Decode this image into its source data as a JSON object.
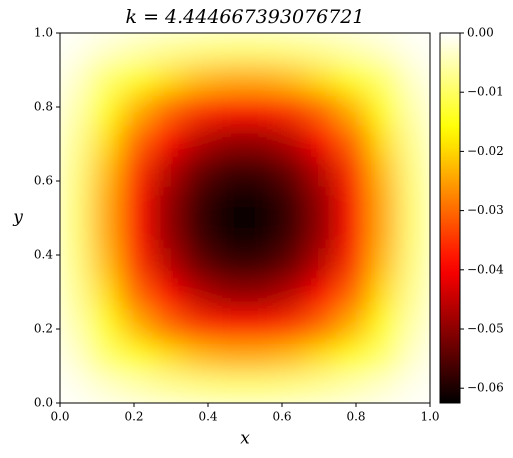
{
  "chart_data": {
    "type": "heatmap",
    "title": "k = 4.444667393076721",
    "x_label": "x",
    "y_label": "y",
    "xlim": [
      0,
      1
    ],
    "ylim": [
      0,
      1
    ],
    "xticks": [
      {
        "value": 0,
        "label": "0.0"
      },
      0.2,
      0.4,
      0.6,
      0.8,
      {
        "value": 1,
        "label": "1.0"
      }
    ],
    "yticks": [
      {
        "value": 0,
        "label": "0.0"
      },
      0.2,
      0.4,
      0.6,
      0.8,
      {
        "value": 1,
        "label": "1.0"
      }
    ],
    "colormap": "hot",
    "zlim": [
      -0.0625,
      0
    ],
    "colorbar_ticks": [
      {
        "value": 0,
        "label": "0.00"
      },
      {
        "value": -0.01,
        "label": "−0.01"
      },
      {
        "value": -0.02,
        "label": "−0.02"
      },
      {
        "value": -0.03,
        "label": "−0.03"
      },
      {
        "value": -0.04,
        "label": "−0.04"
      },
      {
        "value": -0.05,
        "label": "−0.05"
      },
      {
        "value": -0.06,
        "label": "−0.06"
      }
    ],
    "z": [
      [
        -0.0011,
        -0.0031,
        -0.005,
        -0.0065,
        -0.0075,
        -0.0081,
        -0.0081,
        -0.0075,
        -0.0065,
        -0.005,
        -0.0031,
        -0.0011
      ],
      [
        -0.0031,
        -0.0092,
        -0.0146,
        -0.019,
        -0.0221,
        -0.0237,
        -0.0237,
        -0.0221,
        -0.019,
        -0.0146,
        -0.0092,
        -0.0031
      ],
      [
        -0.005,
        -0.0146,
        -0.0232,
        -0.0302,
        -0.0352,
        -0.0377,
        -0.0377,
        -0.0352,
        -0.0302,
        -0.0232,
        -0.0146,
        -0.005
      ],
      [
        -0.0065,
        -0.019,
        -0.0302,
        -0.0393,
        -0.0458,
        -0.0492,
        -0.0492,
        -0.0458,
        -0.0393,
        -0.0302,
        -0.019,
        -0.0065
      ],
      [
        -0.0075,
        -0.0221,
        -0.0352,
        -0.0458,
        -0.0534,
        -0.0573,
        -0.0573,
        -0.0534,
        -0.0458,
        -0.0352,
        -0.0221,
        -0.0075
      ],
      [
        -0.0081,
        -0.0237,
        -0.0377,
        -0.0492,
        -0.0573,
        -0.0614,
        -0.0614,
        -0.0573,
        -0.0492,
        -0.0377,
        -0.0237,
        -0.0081
      ],
      [
        -0.0081,
        -0.0237,
        -0.0377,
        -0.0492,
        -0.0573,
        -0.0614,
        -0.0614,
        -0.0573,
        -0.0492,
        -0.0377,
        -0.0237,
        -0.0081
      ],
      [
        -0.0075,
        -0.0221,
        -0.0352,
        -0.0458,
        -0.0534,
        -0.0573,
        -0.0573,
        -0.0534,
        -0.0458,
        -0.0352,
        -0.0221,
        -0.0075
      ],
      [
        -0.0065,
        -0.019,
        -0.0302,
        -0.0393,
        -0.0458,
        -0.0492,
        -0.0492,
        -0.0458,
        -0.0393,
        -0.0302,
        -0.019,
        -0.0065
      ],
      [
        -0.005,
        -0.0146,
        -0.0232,
        -0.0302,
        -0.0352,
        -0.0377,
        -0.0377,
        -0.0352,
        -0.0302,
        -0.0232,
        -0.0146,
        -0.005
      ],
      [
        -0.0031,
        -0.0092,
        -0.0146,
        -0.019,
        -0.0221,
        -0.0237,
        -0.0237,
        -0.0221,
        -0.019,
        -0.0146,
        -0.0092,
        -0.0031
      ],
      [
        -0.0011,
        -0.0031,
        -0.005,
        -0.0065,
        -0.0075,
        -0.0081,
        -0.0081,
        -0.0075,
        -0.0065,
        -0.005,
        -0.0031,
        -0.0011
      ]
    ]
  }
}
